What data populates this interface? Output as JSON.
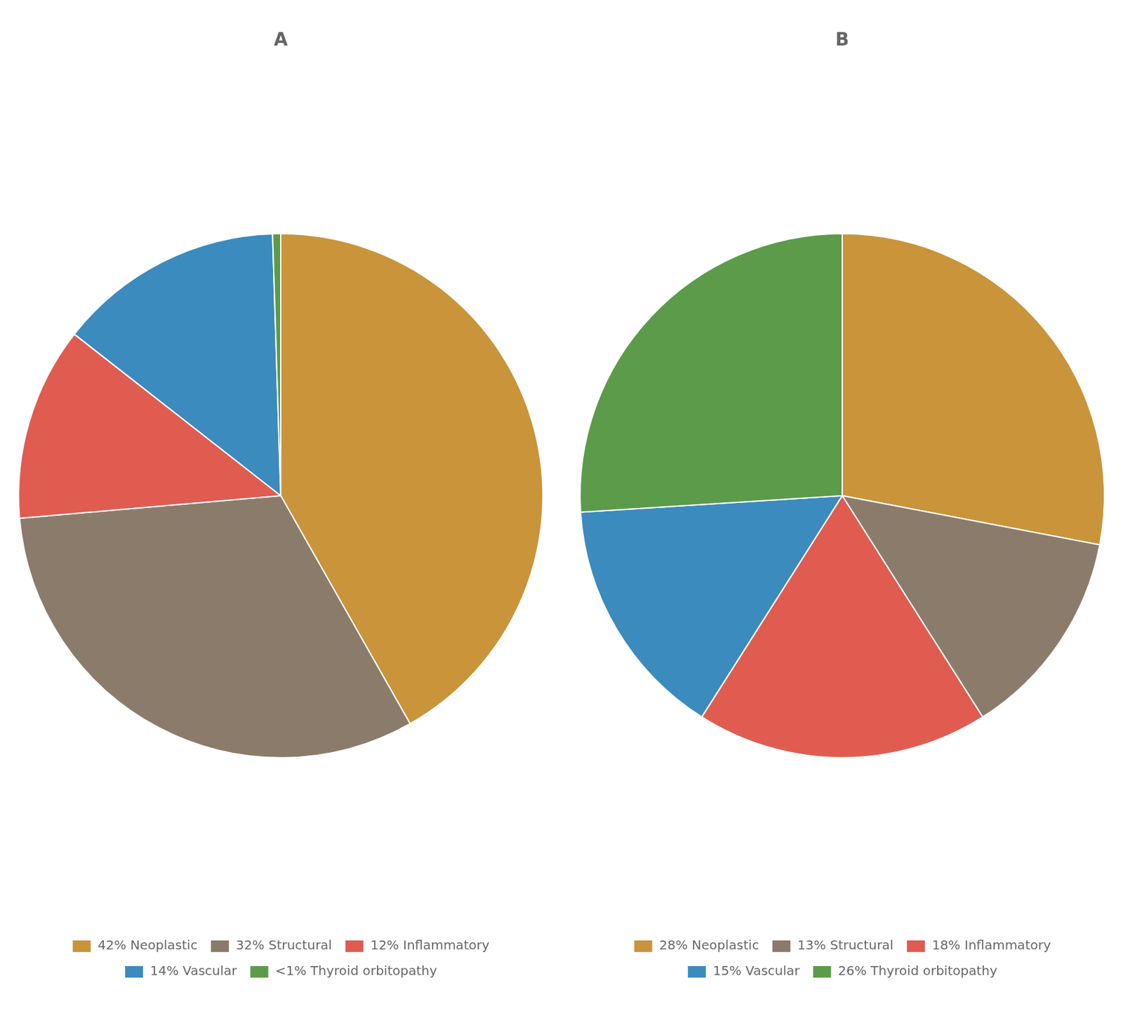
{
  "chart_data": [
    {
      "type": "pie",
      "title": "A",
      "categories": [
        "42% Neoplastic",
        "32% Structural",
        "12% Inflammatory",
        "14% Vascular",
        "<1% Thyroid orbitopathy"
      ],
      "values": [
        42,
        32,
        12,
        14,
        0.5
      ],
      "colors": [
        "#C9943A",
        "#8B7B6B",
        "#E05C50",
        "#3B8BBE",
        "#5B9B4A"
      ],
      "legend": "bottom"
    },
    {
      "type": "pie",
      "title": "B",
      "categories": [
        "28% Neoplastic",
        "13% Structural",
        "18% Inflammatory",
        "15% Vascular",
        "26% Thyroid orbitopathy"
      ],
      "values": [
        28,
        13,
        18,
        15,
        26
      ],
      "colors": [
        "#C9943A",
        "#8B7B6B",
        "#E05C50",
        "#3B8BBE",
        "#5B9B4A"
      ],
      "legend": "bottom"
    }
  ]
}
